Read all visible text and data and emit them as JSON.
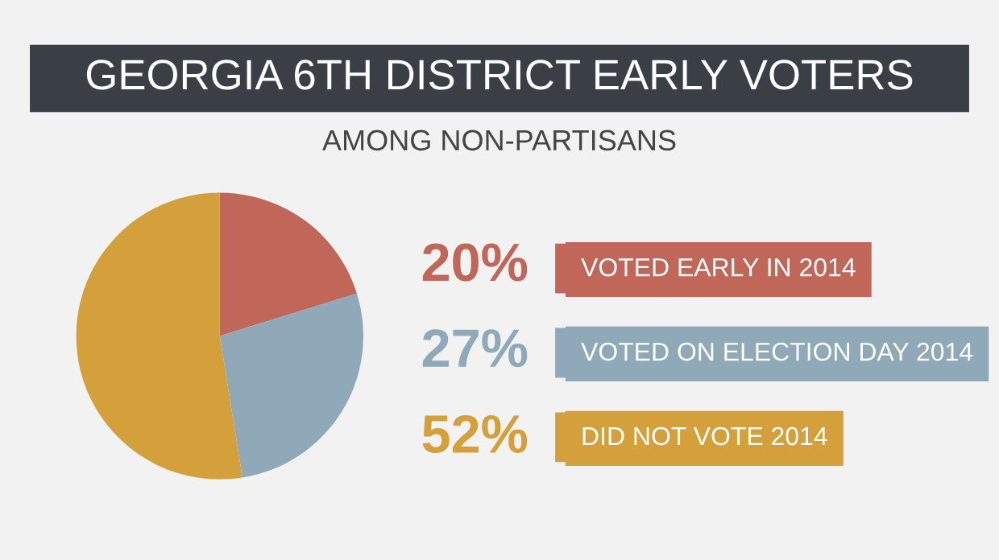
{
  "chart_data": {
    "type": "pie",
    "title": "GEORGIA 6TH DISTRICT EARLY VOTERS",
    "subtitle": "AMONG NON-PARTISANS",
    "categories": [
      "VOTED EARLY IN 2014",
      "VOTED ON ELECTION DAY 2014",
      "DID NOT VOTE 2014"
    ],
    "values": [
      20,
      27,
      52
    ],
    "value_labels": [
      "20%",
      "27%",
      "52%"
    ],
    "colors": [
      "#c0675a",
      "#8fa9b8",
      "#d4a03c"
    ],
    "legend": "right"
  }
}
